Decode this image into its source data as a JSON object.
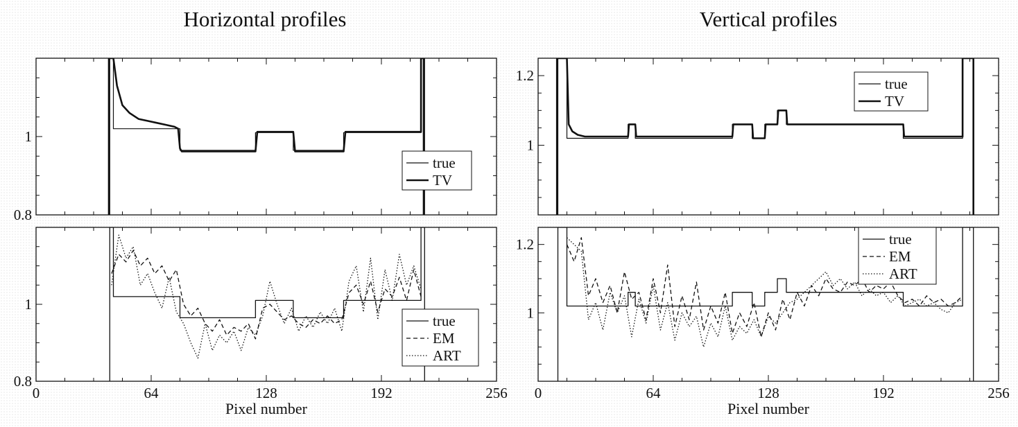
{
  "titles": {
    "left": "Horizontal profiles",
    "right": "Vertical profiles"
  },
  "chart_data": [
    {
      "id": "h-top",
      "type": "line",
      "title": "Horizontal profiles",
      "xlabel": "",
      "ylabel": "",
      "xlim": [
        0,
        256
      ],
      "ylim": [
        0.8,
        1.2
      ],
      "xticks": [],
      "yticks": [
        0.8,
        1
      ],
      "legend": {
        "placement": "right",
        "entries": [
          "true",
          "TV"
        ]
      },
      "series": [
        {
          "name": "true",
          "style": "thin",
          "x": [
            41,
            41,
            43,
            43,
            80,
            80,
            122,
            122,
            143,
            143,
            171,
            171,
            214,
            214,
            216,
            216
          ],
          "y": [
            0.8,
            1.2,
            1.2,
            1.02,
            1.02,
            0.965,
            0.965,
            1.01,
            1.01,
            0.965,
            0.965,
            1.01,
            1.01,
            1.2,
            1.2,
            0.8
          ]
        },
        {
          "name": "TV",
          "style": "thick",
          "x": [
            40.5,
            40.5,
            43,
            45,
            48,
            52,
            57,
            62,
            67,
            72,
            77,
            79,
            80,
            81,
            122,
            123,
            143,
            144,
            171,
            172,
            214,
            214,
            215.5,
            215.5
          ],
          "y": [
            0.8,
            1.2,
            1.2,
            1.13,
            1.08,
            1.06,
            1.045,
            1.04,
            1.035,
            1.03,
            1.025,
            1.02,
            0.97,
            0.962,
            0.962,
            1.012,
            1.012,
            0.962,
            0.962,
            1.012,
            1.012,
            1.2,
            1.2,
            0.8
          ]
        }
      ]
    },
    {
      "id": "h-bot",
      "type": "line",
      "title": "",
      "xlabel": "Pixel number",
      "ylabel": "",
      "xlim": [
        0,
        256
      ],
      "ylim": [
        0.8,
        1.2
      ],
      "xticks": [
        0,
        64,
        128,
        192,
        256
      ],
      "yticks": [
        0.8,
        1
      ],
      "legend": {
        "placement": "bottom-right",
        "entries": [
          "true",
          "EM",
          "ART"
        ]
      },
      "series": [
        {
          "name": "true",
          "style": "solid",
          "x": [
            41,
            41,
            43,
            43,
            80,
            80,
            122,
            122,
            143,
            143,
            171,
            171,
            214,
            214,
            216,
            216
          ],
          "y": [
            0.8,
            1.2,
            1.2,
            1.02,
            1.02,
            0.965,
            0.965,
            1.01,
            1.01,
            0.965,
            0.965,
            1.01,
            1.01,
            1.2,
            1.2,
            0.8
          ]
        },
        {
          "name": "EM",
          "style": "dashed",
          "x": [
            42,
            46,
            50,
            54,
            58,
            62,
            66,
            70,
            74,
            78,
            82,
            86,
            90,
            94,
            98,
            102,
            106,
            110,
            114,
            118,
            122,
            126,
            130,
            134,
            138,
            142,
            146,
            150,
            154,
            158,
            162,
            166,
            170,
            174,
            178,
            182,
            186,
            190,
            194,
            198,
            202,
            206,
            210,
            214
          ],
          "y": [
            1.08,
            1.13,
            1.11,
            1.14,
            1.1,
            1.12,
            1.08,
            1.1,
            1.06,
            1.09,
            1.0,
            0.97,
            0.99,
            0.95,
            0.93,
            0.96,
            0.92,
            0.94,
            0.93,
            0.95,
            0.91,
            0.99,
            1.0,
            0.98,
            0.96,
            0.97,
            0.95,
            0.94,
            0.96,
            0.95,
            0.97,
            0.95,
            0.96,
            1.03,
            1.05,
            1.0,
            1.06,
            0.98,
            1.04,
            1.02,
            1.07,
            1.01,
            1.09,
            1.02
          ]
        },
        {
          "name": "ART",
          "style": "dotted",
          "x": [
            42,
            46,
            50,
            54,
            58,
            62,
            66,
            70,
            74,
            78,
            82,
            86,
            90,
            94,
            98,
            102,
            106,
            110,
            114,
            118,
            122,
            126,
            130,
            134,
            138,
            142,
            146,
            150,
            154,
            158,
            162,
            166,
            170,
            174,
            178,
            182,
            186,
            190,
            194,
            198,
            202,
            206,
            210,
            214
          ],
          "y": [
            1.05,
            1.18,
            1.12,
            1.15,
            1.05,
            1.08,
            1.03,
            0.99,
            1.07,
            0.98,
            0.95,
            0.9,
            0.86,
            0.95,
            0.88,
            0.92,
            0.9,
            0.93,
            0.88,
            0.94,
            0.92,
            0.97,
            1.06,
            1.0,
            0.95,
            0.99,
            0.93,
            0.97,
            0.94,
            0.98,
            0.95,
            0.99,
            0.93,
            1.06,
            1.1,
            0.98,
            1.12,
            0.96,
            1.09,
            1.01,
            1.13,
            1.05,
            1.1,
            1.04
          ]
        }
      ]
    },
    {
      "id": "v-top",
      "type": "line",
      "title": "Vertical profiles",
      "xlabel": "",
      "ylabel": "",
      "xlim": [
        0,
        256
      ],
      "ylim": [
        0.8,
        1.25
      ],
      "xticks": [],
      "yticks": [
        1,
        1.2
      ],
      "legend": {
        "placement": "top-right",
        "entries": [
          "true",
          "TV"
        ]
      },
      "series": [
        {
          "name": "true",
          "style": "thin",
          "x": [
            11,
            11,
            16,
            16,
            50,
            50,
            54,
            54,
            108,
            108,
            119,
            119,
            126,
            126,
            133,
            133,
            138,
            138,
            142,
            142,
            203,
            203,
            236,
            236,
            242,
            242
          ],
          "y": [
            0.8,
            1.25,
            1.25,
            1.02,
            1.02,
            1.06,
            1.06,
            1.02,
            1.02,
            1.06,
            1.06,
            1.02,
            1.02,
            1.06,
            1.06,
            1.1,
            1.1,
            1.06,
            1.06,
            1.06,
            1.06,
            1.02,
            1.02,
            1.25,
            1.25,
            0.8
          ]
        },
        {
          "name": "TV",
          "style": "thick",
          "x": [
            10.5,
            10.5,
            16,
            17,
            19,
            22,
            26,
            50,
            50.5,
            54,
            54.5,
            108,
            108.5,
            119,
            119.5,
            126,
            126.5,
            133,
            133.5,
            138,
            138.5,
            203,
            203.5,
            236,
            236,
            242,
            242
          ],
          "y": [
            0.8,
            1.25,
            1.25,
            1.06,
            1.04,
            1.03,
            1.025,
            1.025,
            1.06,
            1.06,
            1.025,
            1.025,
            1.06,
            1.06,
            1.02,
            1.02,
            1.06,
            1.06,
            1.1,
            1.1,
            1.06,
            1.06,
            1.025,
            1.025,
            1.25,
            1.25,
            0.8
          ]
        }
      ]
    },
    {
      "id": "v-bot",
      "type": "line",
      "title": "",
      "xlabel": "Pixel number",
      "ylabel": "",
      "xlim": [
        0,
        256
      ],
      "ylim": [
        0.8,
        1.25
      ],
      "xticks": [
        0,
        64,
        128,
        192,
        256
      ],
      "yticks": [
        1,
        1.2
      ],
      "legend": {
        "placement": "top-right",
        "entries": [
          "true",
          "EM",
          "ART"
        ]
      },
      "series": [
        {
          "name": "true",
          "style": "solid",
          "x": [
            11,
            11,
            16,
            16,
            50,
            50,
            54,
            54,
            108,
            108,
            119,
            119,
            126,
            126,
            133,
            133,
            138,
            138,
            142,
            142,
            203,
            203,
            236,
            236,
            242,
            242
          ],
          "y": [
            0.8,
            1.25,
            1.25,
            1.02,
            1.02,
            1.06,
            1.06,
            1.02,
            1.02,
            1.06,
            1.06,
            1.02,
            1.02,
            1.06,
            1.06,
            1.1,
            1.1,
            1.06,
            1.06,
            1.06,
            1.06,
            1.02,
            1.02,
            1.25,
            1.25,
            0.8
          ]
        },
        {
          "name": "EM",
          "style": "dashed",
          "x": [
            16,
            20,
            24,
            28,
            32,
            36,
            40,
            44,
            48,
            52,
            56,
            60,
            64,
            68,
            72,
            76,
            80,
            84,
            88,
            92,
            96,
            100,
            104,
            108,
            112,
            116,
            120,
            124,
            128,
            132,
            136,
            140,
            144,
            148,
            152,
            156,
            160,
            164,
            168,
            172,
            176,
            180,
            184,
            188,
            192,
            196,
            200,
            204,
            208,
            212,
            216,
            220,
            224,
            228,
            232,
            236
          ],
          "y": [
            1.2,
            1.15,
            1.22,
            1.05,
            1.1,
            1.03,
            1.08,
            1.0,
            1.12,
            1.04,
            1.06,
            0.98,
            1.1,
            1.0,
            1.14,
            0.96,
            1.05,
            0.98,
            1.09,
            0.95,
            1.02,
            0.97,
            1.06,
            0.94,
            1.0,
            0.96,
            1.03,
            0.93,
            1.0,
            0.95,
            1.04,
            0.98,
            1.06,
            1.02,
            1.08,
            1.05,
            1.1,
            1.07,
            1.06,
            1.09,
            1.08,
            1.1,
            1.06,
            1.08,
            1.07,
            1.09,
            1.05,
            1.03,
            1.04,
            1.02,
            1.05,
            1.03,
            1.04,
            1.02,
            1.03,
            1.05
          ]
        },
        {
          "name": "ART",
          "style": "dotted",
          "x": [
            16,
            20,
            24,
            28,
            32,
            36,
            40,
            44,
            48,
            52,
            56,
            60,
            64,
            68,
            72,
            76,
            80,
            84,
            88,
            92,
            96,
            100,
            104,
            108,
            112,
            116,
            120,
            124,
            128,
            132,
            136,
            140,
            144,
            148,
            152,
            156,
            160,
            164,
            168,
            172,
            176,
            180,
            184,
            188,
            192,
            196,
            200,
            204,
            208,
            212,
            216,
            220,
            224,
            228,
            232,
            236
          ],
          "y": [
            1.22,
            1.2,
            1.18,
            0.98,
            1.03,
            0.95,
            1.06,
            1.0,
            1.05,
            0.93,
            1.04,
            0.97,
            1.08,
            0.95,
            1.03,
            0.92,
            1.0,
            0.96,
            0.99,
            0.9,
            0.97,
            0.93,
            1.02,
            0.92,
            0.96,
            0.94,
            0.98,
            0.93,
            0.99,
            0.97,
            1.0,
            1.03,
            1.04,
            1.06,
            1.08,
            1.1,
            1.12,
            1.08,
            1.1,
            1.07,
            1.09,
            1.05,
            1.07,
            1.05,
            1.06,
            1.03,
            1.05,
            1.02,
            1.03,
            1.04,
            1.02,
            1.03,
            1.01,
            1.0,
            1.03,
            1.04
          ]
        }
      ]
    }
  ]
}
